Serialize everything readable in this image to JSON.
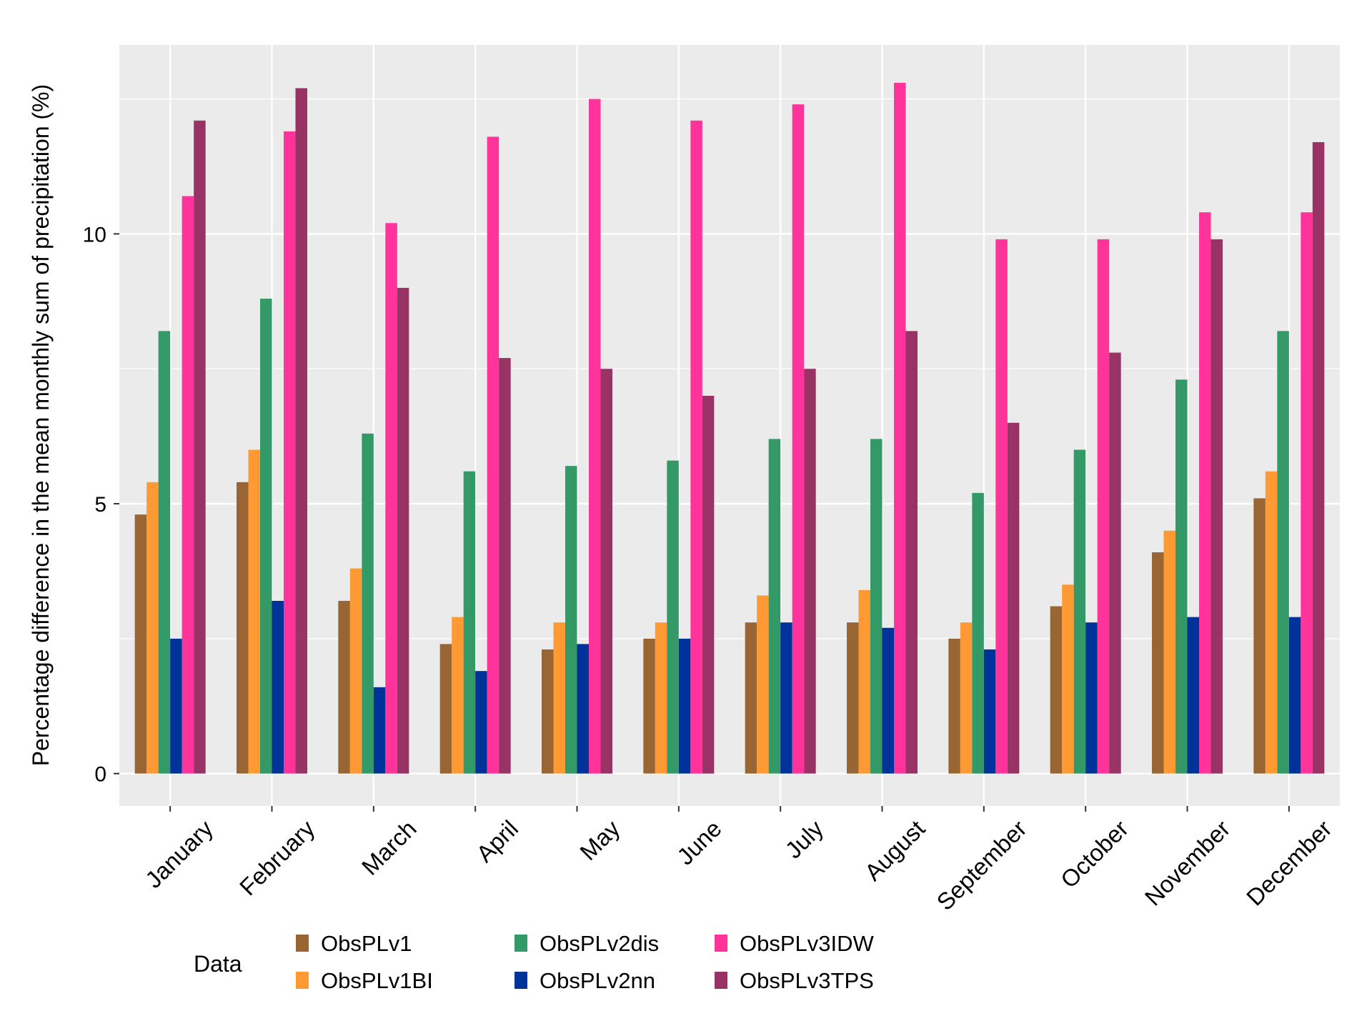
{
  "chart_data": {
    "type": "bar",
    "title": "",
    "xlabel": "",
    "ylabel": "Percentage difference in the mean monthly sum of precipitation (%)",
    "ylim": [
      -0.6,
      13.5
    ],
    "yticks": [
      0,
      5,
      10
    ],
    "grid": true,
    "legend": {
      "title": "Data",
      "placement": "bottom"
    },
    "categories": [
      "January",
      "February",
      "March",
      "April",
      "May",
      "June",
      "July",
      "August",
      "September",
      "October",
      "November",
      "December"
    ],
    "series": [
      {
        "name": "ObsPLv1",
        "color": "#996633",
        "values": [
          4.8,
          5.4,
          3.2,
          2.4,
          2.3,
          2.5,
          2.8,
          2.8,
          2.5,
          3.1,
          4.1,
          5.1
        ]
      },
      {
        "name": "ObsPLv1BI",
        "color": "#FF9933",
        "values": [
          5.4,
          6.0,
          3.8,
          2.9,
          2.8,
          2.8,
          3.3,
          3.4,
          2.8,
          3.5,
          4.5,
          5.6
        ]
      },
      {
        "name": "ObsPLv2dis",
        "color": "#339966",
        "values": [
          8.2,
          8.8,
          6.3,
          5.6,
          5.7,
          5.8,
          6.2,
          6.2,
          5.2,
          6.0,
          7.3,
          8.2
        ]
      },
      {
        "name": "ObsPLv2nn",
        "color": "#003399",
        "values": [
          2.5,
          3.2,
          1.6,
          1.9,
          2.4,
          2.5,
          2.8,
          2.7,
          2.3,
          2.8,
          2.9,
          2.9
        ]
      },
      {
        "name": "ObsPLv3IDW",
        "color": "#FF3399",
        "values": [
          10.7,
          11.9,
          10.2,
          11.8,
          12.5,
          12.1,
          12.4,
          12.8,
          9.9,
          9.9,
          10.4,
          10.4
        ]
      },
      {
        "name": "ObsPLv3TPS",
        "color": "#993366",
        "values": [
          12.1,
          12.7,
          9.0,
          7.7,
          7.5,
          7.0,
          7.5,
          8.2,
          6.5,
          7.8,
          9.9,
          11.7
        ]
      }
    ]
  }
}
